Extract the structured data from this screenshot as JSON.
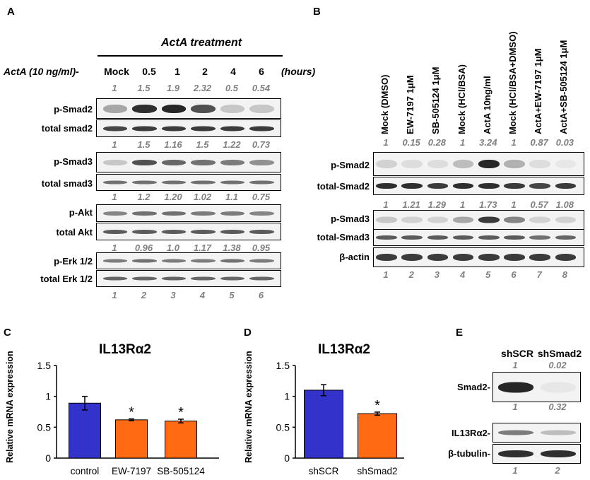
{
  "panels": {
    "A": "A",
    "B": "B",
    "C": "C",
    "D": "D",
    "E": "E"
  },
  "panelA": {
    "header": "ActA treatment",
    "dose_label": "ActA (10 ng/ml)-",
    "times": [
      "Mock",
      "0.5",
      "1",
      "2",
      "4",
      "6"
    ],
    "units": "(hours)",
    "psmad2_quant": [
      "1",
      "1.5",
      "1.9",
      "2.32",
      "0.5",
      "0.54"
    ],
    "psmad3_quant": [
      "1",
      "1.5",
      "1.16",
      "1.5",
      "1.22",
      "0.73"
    ],
    "pakt_quant": [
      "1",
      "1.2",
      "1.20",
      "1.02",
      "1.1",
      "0.75"
    ],
    "perk_quant": [
      "1",
      "0.96",
      "1.0",
      "1.17",
      "1.38",
      "0.95"
    ],
    "lanes": [
      "1",
      "2",
      "3",
      "4",
      "5",
      "6"
    ],
    "rows": [
      "p-Smad2",
      "total smad2",
      "p-Smad3",
      "total smad3",
      "p-Akt",
      "total Akt",
      "p-Erk 1/2",
      "total Erk 1/2"
    ]
  },
  "panelB": {
    "conditions": [
      "Mock (DMSO)",
      "EW-7197 1μM",
      "SB-505124 1μM",
      "Mock (HCl/BSA)",
      "ActA 10ng/ml",
      "Mock (HCl/BSA+DMSO)",
      "ActA+EW-7197 1μM",
      "ActA+SB-505124 1μM"
    ],
    "psmad2_quant": [
      "1",
      "0.15",
      "0.28",
      "1",
      "3.24",
      "1",
      "0.87",
      "0.03"
    ],
    "psmad3_quant": [
      "1",
      "1.21",
      "1.29",
      "1",
      "1.73",
      "1",
      "0.57",
      "1.08"
    ],
    "lanes": [
      "1",
      "2",
      "3",
      "4",
      "5",
      "6",
      "7",
      "8"
    ],
    "rows": [
      "p-Smad2",
      "total-Smad2",
      "p-Smad3",
      "total-Smad3",
      "β-actin"
    ]
  },
  "panelC": {
    "title": "IL13Rα2",
    "ylabel": "Relative mRNA expression",
    "significance": "*"
  },
  "panelD": {
    "title": "IL13Rα2",
    "ylabel": "Relative mRNA expression",
    "significance": "*"
  },
  "panelE": {
    "columns": [
      "shSCR",
      "shSmad2"
    ],
    "smad2_quant": [
      "1",
      "0.02"
    ],
    "il13_quant": [
      "1",
      "0.32"
    ],
    "lanes": [
      "1",
      "2"
    ],
    "rows": [
      "Smad2-",
      "IL13Rα2-",
      "β-tubulin-"
    ]
  },
  "chart_data": [
    {
      "type": "bar",
      "title": "IL13Rα2",
      "ylabel": "Relative mRNA expression",
      "xlabel": "",
      "categories": [
        "control",
        "EW-7197",
        "SB-505124"
      ],
      "values": [
        0.89,
        0.62,
        0.6
      ],
      "errors": [
        0.11,
        0.015,
        0.03
      ],
      "colors": [
        "#3333cc",
        "#ff6a13",
        "#ff6a13"
      ],
      "significant": [
        false,
        true,
        true
      ],
      "ylim": [
        0,
        1.5
      ],
      "yticks": [
        "0",
        "0.5",
        "1",
        "1.5"
      ]
    },
    {
      "type": "bar",
      "title": "IL13Rα2",
      "ylabel": "Relative mRNA expression",
      "xlabel": "",
      "categories": [
        "shSCR",
        "shSmad2"
      ],
      "values": [
        1.1,
        0.72
      ],
      "errors": [
        0.09,
        0.025
      ],
      "colors": [
        "#3333cc",
        "#ff6a13"
      ],
      "significant": [
        false,
        true
      ],
      "ylim": [
        0,
        1.5
      ],
      "yticks": [
        "0",
        "0.5",
        "1",
        "1.5"
      ]
    }
  ]
}
